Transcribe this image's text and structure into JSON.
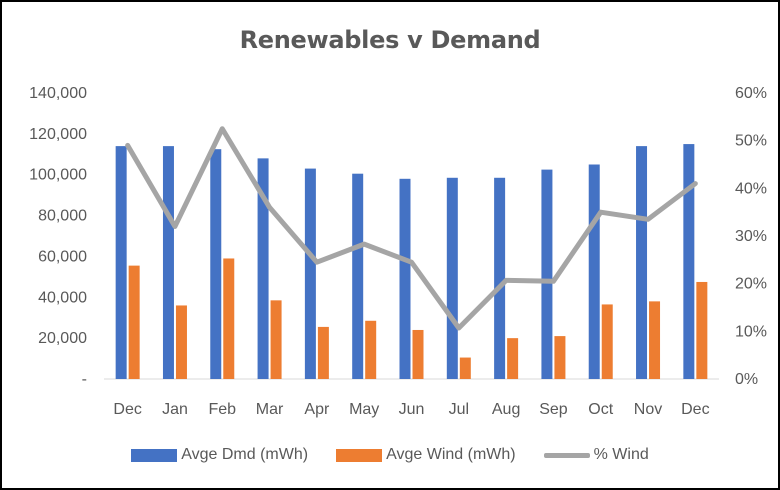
{
  "chart_data": {
    "type": "bar",
    "title": "Renewables v Demand",
    "categories": [
      "Dec",
      "Jan",
      "Feb",
      "Mar",
      "Apr",
      "May",
      "Jun",
      "Jul",
      "Aug",
      "Sep",
      "Oct",
      "Nov",
      "Dec"
    ],
    "series": [
      {
        "name": "Avge Dmd (mWh)",
        "type": "bar",
        "axis": "left",
        "color": "#4472C4",
        "values": [
          114000,
          114000,
          112500,
          108000,
          103000,
          100500,
          98000,
          98500,
          98500,
          102500,
          105000,
          114000,
          115000
        ]
      },
      {
        "name": "Avge Wind (mWh)",
        "type": "bar",
        "axis": "left",
        "color": "#ED7D31",
        "values": [
          55500,
          36000,
          59000,
          38500,
          25500,
          28500,
          24000,
          10500,
          20000,
          21000,
          36500,
          38000,
          47500
        ]
      },
      {
        "name": "% Wind",
        "type": "line",
        "axis": "right",
        "color": "#A5A5A5",
        "values": [
          0.49,
          0.32,
          0.525,
          0.36,
          0.245,
          0.283,
          0.245,
          0.107,
          0.207,
          0.205,
          0.35,
          0.335,
          0.41
        ]
      }
    ],
    "y_left": {
      "lim": [
        0,
        140000
      ],
      "ticks": [
        0,
        20000,
        40000,
        60000,
        80000,
        100000,
        120000,
        140000
      ],
      "tick_labels": [
        "-",
        "20,000",
        "40,000",
        "60,000",
        "80,000",
        "100,000",
        "120,000",
        "140,000"
      ]
    },
    "y_right": {
      "lim": [
        0,
        0.6
      ],
      "ticks": [
        0,
        0.1,
        0.2,
        0.3,
        0.4,
        0.5,
        0.6
      ],
      "tick_labels": [
        "0%",
        "10%",
        "20%",
        "30%",
        "40%",
        "50%",
        "60%"
      ]
    },
    "grid": false,
    "legend_position": "bottom"
  }
}
